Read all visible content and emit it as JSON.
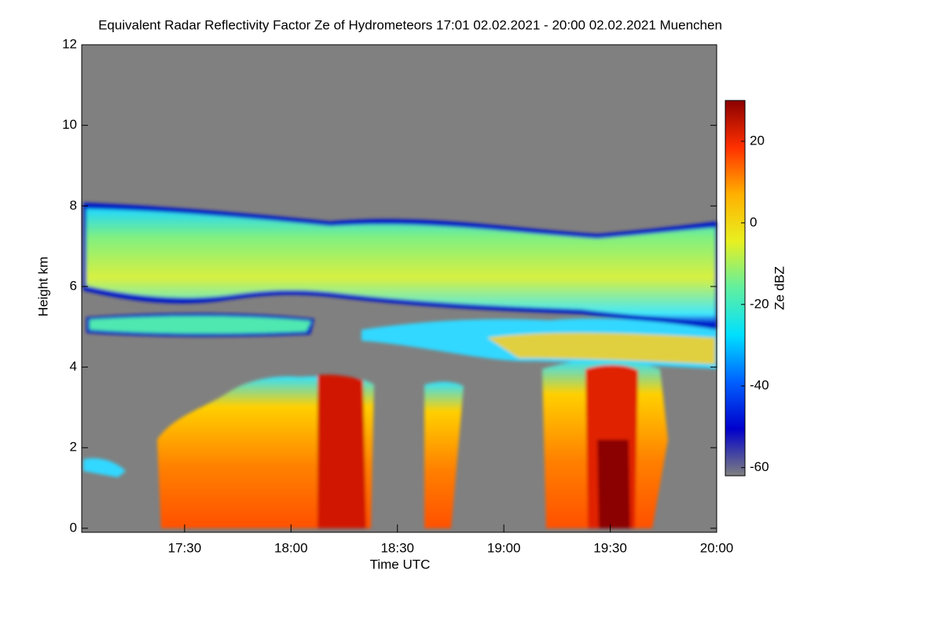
{
  "chart_data": {
    "type": "heatmap",
    "title": "Equivalent Radar Reflectivity Factor Ze of Hydrometeors   17:01 02.02.2021 - 20:00 02.02.2021 Muenchen",
    "x_label": "Time UTC",
    "y_label": "Height km",
    "colorbar_label": "Ze dBZ",
    "xlim": [
      1021,
      1200
    ],
    "xticks": [
      {
        "value": 1050,
        "label": "17:30"
      },
      {
        "value": 1080,
        "label": "18:00"
      },
      {
        "value": 1110,
        "label": "18:30"
      },
      {
        "value": 1140,
        "label": "19:00"
      },
      {
        "value": 1170,
        "label": "19:30"
      },
      {
        "value": 1200,
        "label": "20:00"
      }
    ],
    "ylim": [
      -0.1,
      12
    ],
    "yticks": [
      0,
      2,
      4,
      6,
      8,
      10,
      12
    ],
    "zlim": [
      -62,
      30
    ],
    "zticks": [
      -60,
      -40,
      -20,
      0,
      20
    ],
    "colormap": [
      "#7f7f7f",
      "#0000cc",
      "#0060ff",
      "#00e0ff",
      "#60f0a0",
      "#e8f020",
      "#ffb000",
      "#ff3000",
      "#8b0000"
    ],
    "background": "#808080"
  }
}
